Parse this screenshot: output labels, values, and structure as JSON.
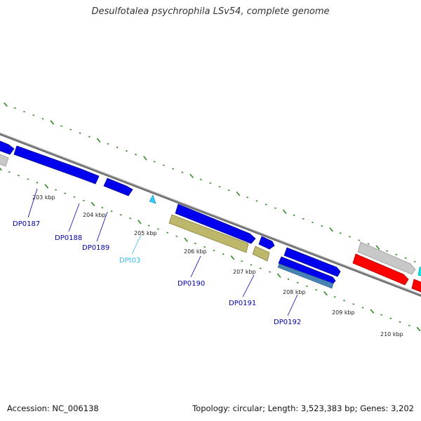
{
  "title": "Desulfotalea psychrophila LSv54, complete genome",
  "footer": {
    "accession": "Accession: NC_006138",
    "topology": "Topology: circular; Length: 3,523,383 bp; Genes: 3,202"
  },
  "colors": {
    "backbone": "#808080",
    "cds": "#0000ee",
    "trna": "#33ccff",
    "khaki": "#bdb76b",
    "gray_feature": "#c8c8c8",
    "red_feature": "#ff0000",
    "cyan_feature": "#00e5e5",
    "steel_feature": "#4682b4",
    "tick": "#2e8b22",
    "gene_label": "#0000aa",
    "trna_label": "#33bbee"
  },
  "kbp_labels": [
    "203 kbp",
    "204 kbp",
    "205 kbp",
    "206 kbp",
    "207 kbp",
    "208 kbp",
    "209 kbp",
    "210 kbp"
  ],
  "gene_labels": [
    "DP0187",
    "DP0188",
    "DP0189",
    "DPt03",
    "DP0190",
    "DP0191",
    "DP0192"
  ]
}
